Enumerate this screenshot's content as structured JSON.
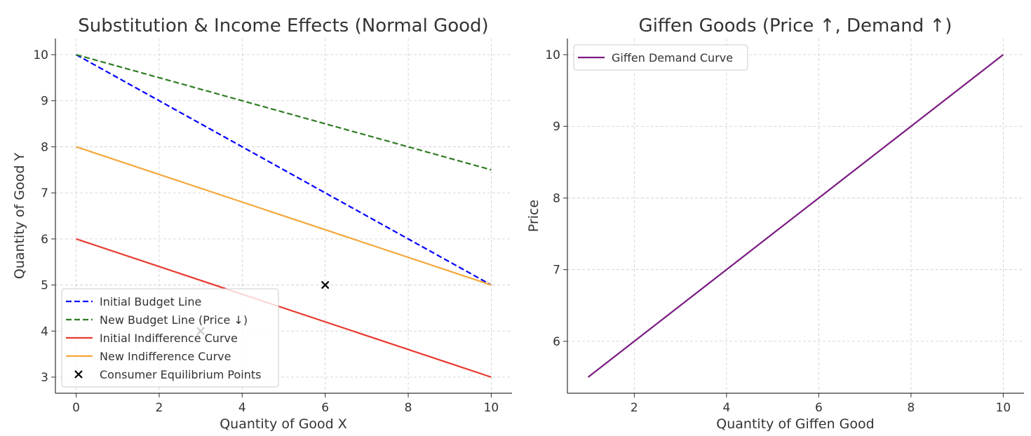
{
  "chart_data": [
    {
      "type": "line",
      "title": "Substitution & Income Effects (Normal Good)",
      "xlabel": "Quantity of Good X",
      "ylabel": "Quantity of Good Y",
      "xlim": [
        -0.5,
        10.5
      ],
      "ylim": [
        2.65,
        10.35
      ],
      "xticks": [
        0,
        2,
        4,
        6,
        8,
        10
      ],
      "yticks": [
        3,
        4,
        5,
        6,
        7,
        8,
        9,
        10
      ],
      "grid": true,
      "legend_position": "lower-left",
      "series": [
        {
          "name": "Initial Budget Line",
          "style": "dashed",
          "color": "#0000ff",
          "x": [
            0,
            10
          ],
          "y": [
            10,
            5
          ]
        },
        {
          "name": "New Budget Line (Price ↓)",
          "style": "dashed",
          "color": "#2e7d22",
          "x": [
            0,
            10
          ],
          "y": [
            10,
            7.5
          ]
        },
        {
          "name": "Initial Indifference Curve",
          "style": "solid",
          "color": "#e8392f",
          "x": [
            0,
            10
          ],
          "y": [
            6,
            3
          ]
        },
        {
          "name": "New Indifference Curve",
          "style": "solid",
          "color": "#f5a83a",
          "x": [
            0,
            10
          ],
          "y": [
            8,
            5
          ]
        },
        {
          "name": "Consumer Equilibrium Points",
          "style": "marker-x",
          "color": "#000000",
          "x": [
            3,
            6
          ],
          "y": [
            4,
            5
          ]
        }
      ]
    },
    {
      "type": "line",
      "title": "Giffen Goods (Price ↑, Demand ↑)",
      "xlabel": "Quantity of Giffen Good",
      "ylabel": "Price",
      "xlim": [
        0.55,
        10.45
      ],
      "ylim": [
        5.275,
        10.225
      ],
      "xticks": [
        2,
        4,
        6,
        8,
        10
      ],
      "yticks": [
        6,
        7,
        8,
        9,
        10
      ],
      "grid": true,
      "legend_position": "upper-left",
      "series": [
        {
          "name": "Giffen Demand Curve",
          "style": "solid",
          "color": "#7b1a82",
          "x": [
            1,
            2,
            3,
            4,
            5,
            6,
            7,
            8,
            9,
            10
          ],
          "y": [
            5.5,
            6,
            6.5,
            7,
            7.5,
            8,
            8.5,
            9,
            9.5,
            10
          ]
        }
      ]
    }
  ]
}
